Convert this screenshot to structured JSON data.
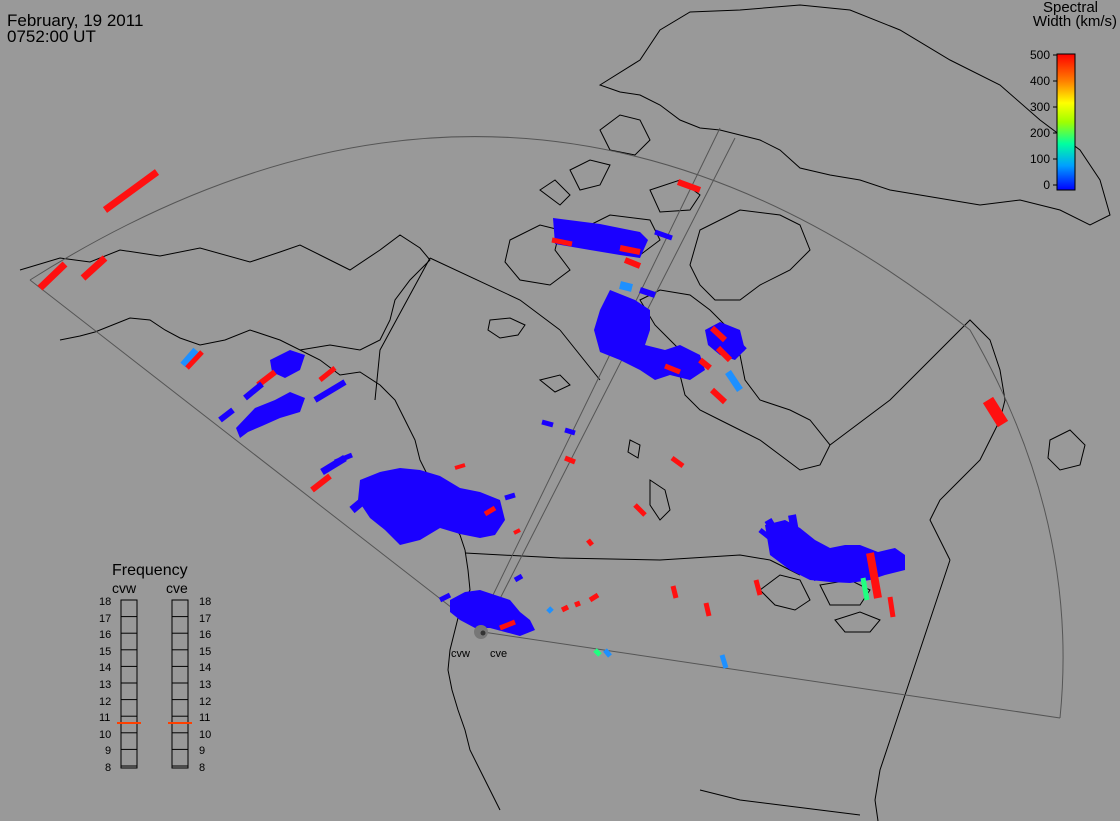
{
  "header": {
    "date": "February, 19 2011",
    "time": "0752:00 UT"
  },
  "colorbar": {
    "title_line1": "Spectral",
    "title_line2": "Width (km/s)",
    "ticks": [
      "500",
      "400",
      "300",
      "200",
      "100",
      "0"
    ],
    "range": [
      0,
      500
    ],
    "colors": [
      "#0000ff",
      "#00a0ff",
      "#00ffa0",
      "#a0ff00",
      "#ffff00",
      "#ff8000",
      "#ff0000"
    ]
  },
  "frequency_panel": {
    "title": "Frequency",
    "radars": [
      {
        "name": "cvw",
        "selected_mhz": 10.8
      },
      {
        "name": "cve",
        "selected_mhz": 10.8
      }
    ],
    "ticks": [
      "18",
      "17",
      "16",
      "15",
      "14",
      "13",
      "12",
      "11",
      "10",
      "9",
      "8"
    ]
  },
  "radar_sites": [
    {
      "name": "cvw"
    },
    {
      "name": "cve"
    }
  ],
  "colors": {
    "background": "#999999",
    "map_lines": "#000000",
    "fov_lines": "#555555",
    "indicator": "#ff4000"
  }
}
